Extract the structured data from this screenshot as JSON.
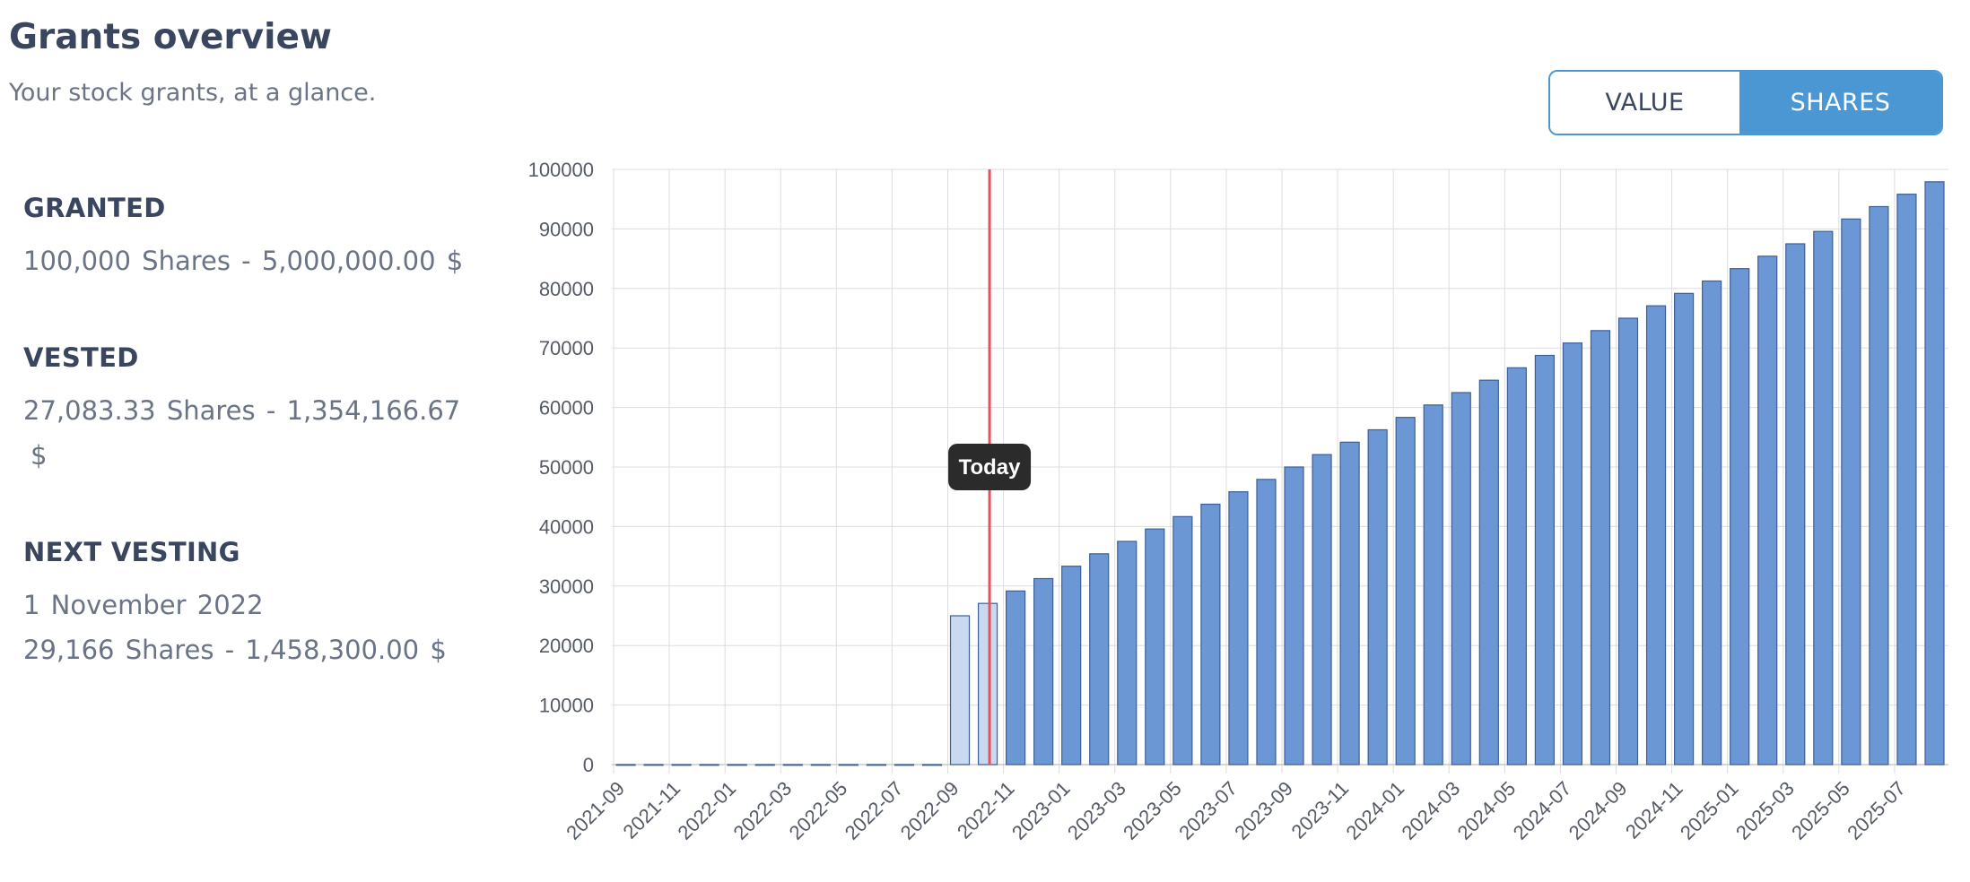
{
  "header": {
    "title": "Grants overview",
    "subtitle": "Your stock grants, at a glance."
  },
  "toggle": {
    "options": [
      "VALUE",
      "SHARES"
    ],
    "selected": "SHARES",
    "active_color": "#4a97d3"
  },
  "stats": {
    "granted": {
      "heading": "GRANTED",
      "shares": "100,000",
      "value": "5,000,000.00"
    },
    "vested": {
      "heading": "VESTED",
      "shares": "27,083.33",
      "value": "1,354,166.67"
    },
    "next_vesting": {
      "heading": "NEXT VESTING",
      "date": "1 November 2022",
      "shares": "29,166",
      "value": "1,458,300.00"
    },
    "shares_word": "Shares",
    "separator": "-",
    "currency": "$"
  },
  "chart_data": {
    "type": "bar",
    "title": "",
    "xlabel": "",
    "ylabel": "",
    "ylim": [
      0,
      100000
    ],
    "yticks": [
      0,
      10000,
      20000,
      30000,
      40000,
      50000,
      60000,
      70000,
      80000,
      90000,
      100000
    ],
    "grid": true,
    "categories": [
      "2021-09",
      "2021-10",
      "2021-11",
      "2021-12",
      "2022-01",
      "2022-02",
      "2022-03",
      "2022-04",
      "2022-05",
      "2022-06",
      "2022-07",
      "2022-08",
      "2022-09",
      "2022-10",
      "2022-11",
      "2022-12",
      "2023-01",
      "2023-02",
      "2023-03",
      "2023-04",
      "2023-05",
      "2023-06",
      "2023-07",
      "2023-08",
      "2023-09",
      "2023-10",
      "2023-11",
      "2023-12",
      "2024-01",
      "2024-02",
      "2024-03",
      "2024-04",
      "2024-05",
      "2024-06",
      "2024-07",
      "2024-08",
      "2024-09",
      "2024-10",
      "2024-11",
      "2024-12",
      "2025-01",
      "2025-02",
      "2025-03",
      "2025-04",
      "2025-05",
      "2025-06",
      "2025-07",
      "2025-08"
    ],
    "x_tick_labels": [
      "2021-09",
      "2021-11",
      "2022-01",
      "2022-03",
      "2022-05",
      "2022-07",
      "2022-09",
      "2022-11",
      "2023-01",
      "2023-03",
      "2023-05",
      "2023-07",
      "2023-09",
      "2023-11",
      "2024-01",
      "2024-03",
      "2024-05",
      "2024-07",
      "2024-09",
      "2024-11",
      "2025-01",
      "2025-03",
      "2025-05",
      "2025-07"
    ],
    "values": [
      0,
      0,
      0,
      0,
      0,
      0,
      0,
      0,
      0,
      0,
      0,
      0,
      25000,
      27083,
      29166,
      31250,
      33333,
      35416,
      37500,
      39583,
      41666,
      43750,
      45833,
      47916,
      50000,
      52083,
      54166,
      56250,
      58333,
      60416,
      62500,
      64583,
      66666,
      68750,
      70833,
      72916,
      75000,
      77083,
      79166,
      81250,
      83333,
      85416,
      87500,
      89583,
      91666,
      93750,
      95833,
      97916
    ],
    "vested_count": 14,
    "today_marker": {
      "label": "Today",
      "position": "2022-10",
      "color": "#e05560"
    },
    "colors": {
      "vested_fill": "#c8d9f0",
      "unvested_fill": "#6b98d4",
      "bar_stroke": "#3d5f99",
      "grid": "#dddddd"
    }
  }
}
